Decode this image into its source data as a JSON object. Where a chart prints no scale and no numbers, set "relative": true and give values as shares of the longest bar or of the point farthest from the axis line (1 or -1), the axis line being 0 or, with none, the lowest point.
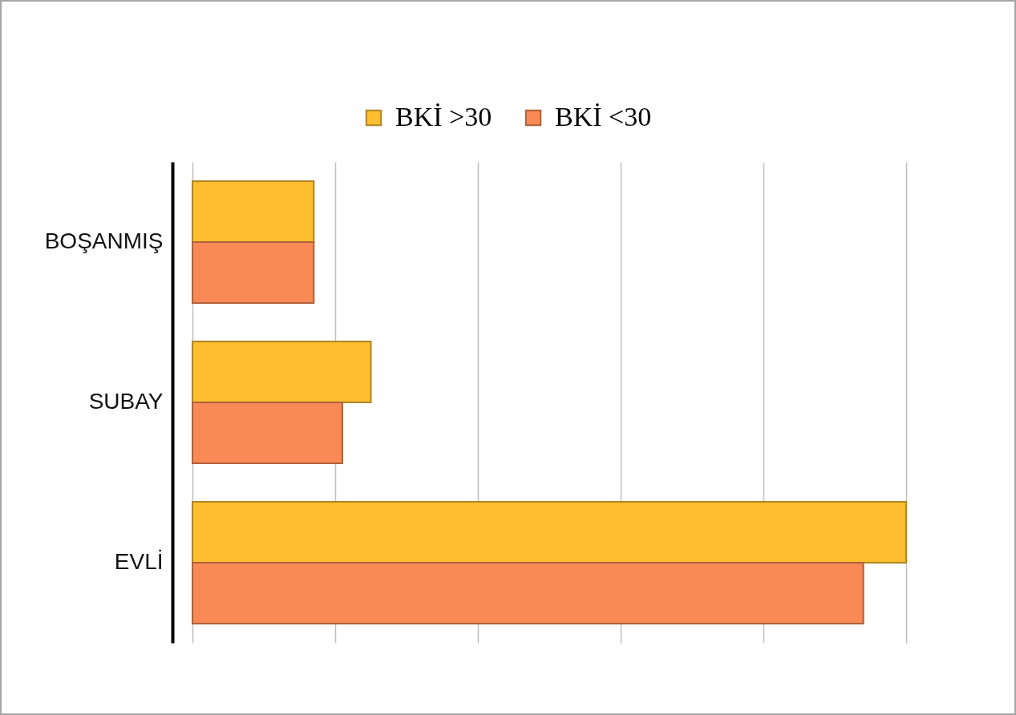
{
  "chart_data": {
    "type": "bar",
    "orientation": "horizontal",
    "relative": true,
    "categories": [
      "BOŞANMIŞ",
      "SUBAY",
      "EVLİ"
    ],
    "series": [
      {
        "name": "BKİ >30",
        "color": "#fdbe30",
        "values": [
          0.17,
          0.25,
          1
        ]
      },
      {
        "name": "BKİ <30",
        "color": "#f98a55",
        "values": [
          0.17,
          0.21,
          0.94
        ]
      }
    ],
    "grid": "x",
    "legend": "top"
  }
}
